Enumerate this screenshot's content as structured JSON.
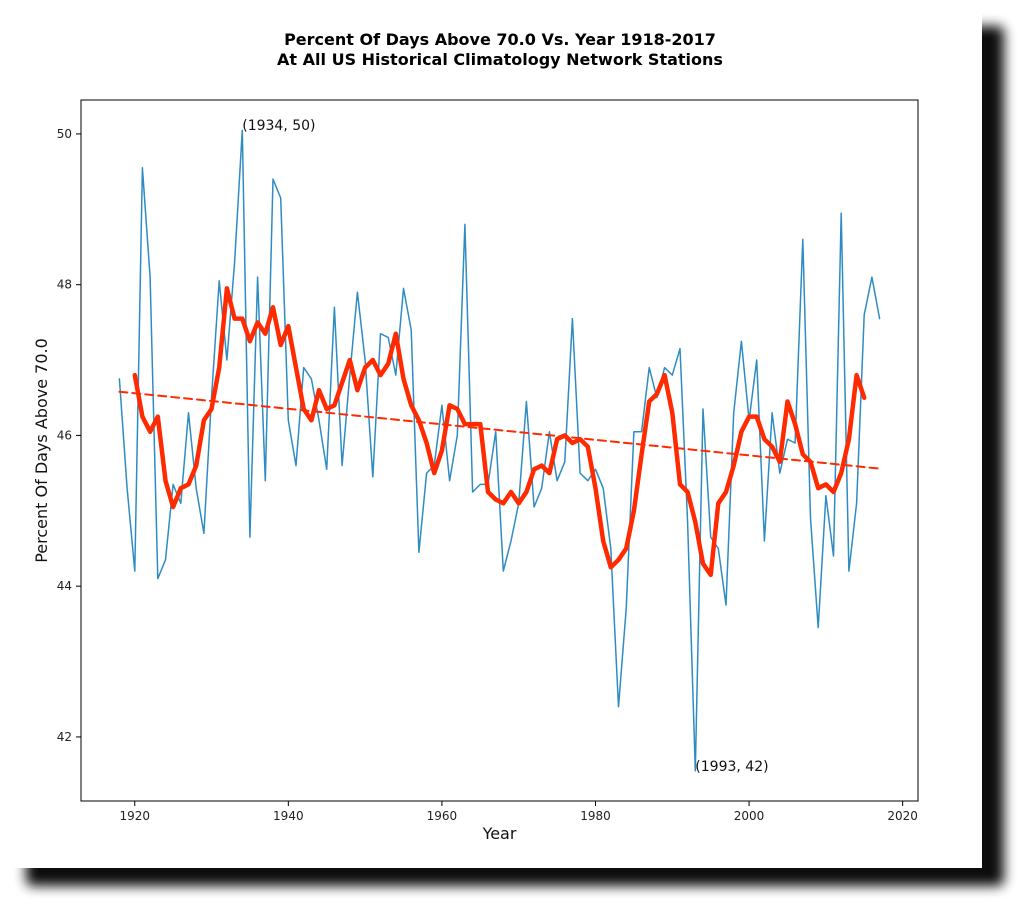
{
  "chart_data": {
    "type": "line",
    "title": "Percent Of Days Above 70.0 Vs. Year 1918-2017",
    "subtitle": "At All US Historical Climatology Network Stations",
    "xlabel": "Year",
    "ylabel": "Percent Of Days Above 70.0",
    "xlim": [
      1913,
      2022
    ],
    "ylim": [
      41.15,
      50.45
    ],
    "xticks": [
      1920,
      1940,
      1960,
      1980,
      2000,
      2020
    ],
    "yticks": [
      42,
      44,
      46,
      48,
      50
    ],
    "grid": false,
    "annotations": [
      {
        "text": "(1934, 50)",
        "x": 1934,
        "y": 50.05
      },
      {
        "text": "(1993, 42)",
        "x": 1993,
        "y": 41.55
      }
    ],
    "series": [
      {
        "style": "thin",
        "color": "#2f8cc2",
        "x": [
          1918,
          1919,
          1920,
          1921,
          1922,
          1923,
          1924,
          1925,
          1926,
          1927,
          1928,
          1929,
          1930,
          1931,
          1932,
          1933,
          1934,
          1935,
          1936,
          1937,
          1938,
          1939,
          1940,
          1941,
          1942,
          1943,
          1944,
          1945,
          1946,
          1947,
          1948,
          1949,
          1950,
          1951,
          1952,
          1953,
          1954,
          1955,
          1956,
          1957,
          1958,
          1959,
          1960,
          1961,
          1962,
          1963,
          1964,
          1965,
          1966,
          1967,
          1968,
          1969,
          1970,
          1971,
          1972,
          1973,
          1974,
          1975,
          1976,
          1977,
          1978,
          1979,
          1980,
          1981,
          1982,
          1983,
          1984,
          1985,
          1986,
          1987,
          1988,
          1989,
          1990,
          1991,
          1992,
          1993,
          1994,
          1995,
          1996,
          1997,
          1998,
          1999,
          2000,
          2001,
          2002,
          2003,
          2004,
          2005,
          2006,
          2007,
          2008,
          2009,
          2010,
          2011,
          2012,
          2013,
          2014,
          2015,
          2016,
          2017
        ],
        "y": [
          46.75,
          45.3,
          44.2,
          49.55,
          48.1,
          44.1,
          44.35,
          45.35,
          45.1,
          46.3,
          45.3,
          44.7,
          46.5,
          48.05,
          47.0,
          48.3,
          50.05,
          44.65,
          48.1,
          45.4,
          49.4,
          49.15,
          46.2,
          45.6,
          46.9,
          46.75,
          46.2,
          45.55,
          47.7,
          45.6,
          46.8,
          47.9,
          47.0,
          45.45,
          47.35,
          47.3,
          46.8,
          47.95,
          47.4,
          44.45,
          45.5,
          45.6,
          46.4,
          45.4,
          46.0,
          48.8,
          45.25,
          45.35,
          45.35,
          46.05,
          44.2,
          44.6,
          45.1,
          46.45,
          45.05,
          45.3,
          46.05,
          45.4,
          45.65,
          47.55,
          45.5,
          45.4,
          45.55,
          45.3,
          44.5,
          42.4,
          43.7,
          46.05,
          46.05,
          46.9,
          46.5,
          46.9,
          46.8,
          47.15,
          44.85,
          41.55,
          46.35,
          44.65,
          44.5,
          43.75,
          46.3,
          47.25,
          46.2,
          47.0,
          44.6,
          46.3,
          45.5,
          45.95,
          45.9,
          48.6,
          44.9,
          43.45,
          45.2,
          44.4,
          48.95,
          44.2,
          45.1,
          47.6,
          48.1,
          47.55
        ]
      },
      {
        "style": "thick",
        "color": "#ff2a00",
        "x": [
          1920,
          1921,
          1922,
          1923,
          1924,
          1925,
          1926,
          1927,
          1928,
          1929,
          1930,
          1931,
          1932,
          1933,
          1934,
          1935,
          1936,
          1937,
          1938,
          1939,
          1940,
          1941,
          1942,
          1943,
          1944,
          1945,
          1946,
          1947,
          1948,
          1949,
          1950,
          1951,
          1952,
          1953,
          1954,
          1955,
          1956,
          1957,
          1958,
          1959,
          1960,
          1961,
          1962,
          1963,
          1964,
          1965,
          1966,
          1967,
          1968,
          1969,
          1970,
          1971,
          1972,
          1973,
          1974,
          1975,
          1976,
          1977,
          1978,
          1979,
          1980,
          1981,
          1982,
          1983,
          1984,
          1985,
          1986,
          1987,
          1988,
          1989,
          1990,
          1991,
          1992,
          1993,
          1994,
          1995,
          1996,
          1997,
          1998,
          1999,
          2000,
          2001,
          2002,
          2003,
          2004,
          2005,
          2006,
          2007,
          2008,
          2009,
          2010,
          2011,
          2012,
          2013,
          2014,
          2015
        ],
        "y": [
          46.8,
          46.25,
          46.05,
          46.25,
          45.4,
          45.05,
          45.3,
          45.35,
          45.6,
          46.2,
          46.35,
          46.9,
          47.95,
          47.55,
          47.55,
          47.25,
          47.5,
          47.35,
          47.7,
          47.2,
          47.45,
          46.9,
          46.35,
          46.2,
          46.6,
          46.35,
          46.4,
          46.7,
          47.0,
          46.6,
          46.9,
          47.0,
          46.8,
          46.95,
          47.35,
          46.75,
          46.4,
          46.2,
          45.9,
          45.5,
          45.8,
          46.4,
          46.35,
          46.15,
          46.15,
          46.15,
          45.25,
          45.15,
          45.1,
          45.25,
          45.1,
          45.25,
          45.55,
          45.6,
          45.5,
          45.95,
          46.0,
          45.9,
          45.95,
          45.85,
          45.3,
          44.6,
          44.25,
          44.35,
          44.5,
          45.0,
          45.75,
          46.45,
          46.55,
          46.8,
          46.3,
          45.35,
          45.25,
          44.85,
          44.3,
          44.15,
          45.1,
          45.25,
          45.6,
          46.05,
          46.25,
          46.25,
          45.95,
          45.85,
          45.65,
          46.45,
          46.15,
          45.75,
          45.65,
          45.3,
          45.35,
          45.25,
          45.5,
          45.95,
          46.8,
          46.5
        ]
      },
      {
        "style": "dashed",
        "color": "#ff2a00",
        "x": [
          1918,
          2017
        ],
        "y": [
          46.58,
          45.56
        ]
      }
    ]
  }
}
